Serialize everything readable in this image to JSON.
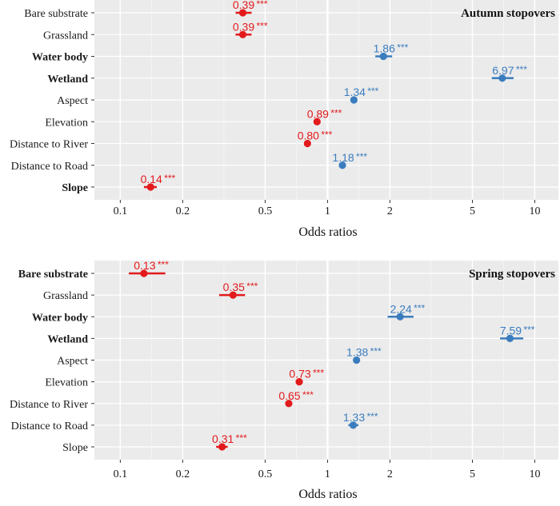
{
  "chart_data": [
    {
      "type": "forest",
      "title": "Autumn stopovers",
      "xlabel": "Odds ratios",
      "xscale": "log",
      "xlim": [
        0.075,
        13
      ],
      "xticks": [
        0.1,
        0.2,
        0.5,
        1,
        2,
        5,
        10
      ],
      "xtick_labels": [
        "0.1",
        "0.2",
        "0.5",
        "1",
        "2",
        "5",
        "10"
      ],
      "grid": true,
      "colors": {
        "negative": "#e31a1c",
        "positive": "#3a7dbf"
      },
      "points": [
        {
          "label": "Bare substrate",
          "bold": false,
          "or": 0.39,
          "lo": 0.36,
          "hi": 0.43,
          "sig": "***",
          "direction": "negative"
        },
        {
          "label": "Grassland",
          "bold": false,
          "or": 0.39,
          "lo": 0.36,
          "hi": 0.43,
          "sig": "***",
          "direction": "negative"
        },
        {
          "label": "Water body",
          "bold": true,
          "or": 1.86,
          "lo": 1.7,
          "hi": 2.05,
          "sig": "***",
          "direction": "positive"
        },
        {
          "label": "Wetland",
          "bold": true,
          "or": 6.97,
          "lo": 6.2,
          "hi": 7.9,
          "sig": "***",
          "direction": "positive"
        },
        {
          "label": "Aspect",
          "bold": false,
          "or": 1.34,
          "lo": 1.31,
          "hi": 1.37,
          "sig": "***",
          "direction": "positive"
        },
        {
          "label": "Elevation",
          "bold": false,
          "or": 0.89,
          "lo": 0.87,
          "hi": 0.91,
          "sig": "***",
          "direction": "negative"
        },
        {
          "label": "Distance to River",
          "bold": false,
          "or": 0.8,
          "lo": 0.78,
          "hi": 0.82,
          "sig": "***",
          "direction": "negative"
        },
        {
          "label": "Distance to Road",
          "bold": false,
          "or": 1.18,
          "lo": 1.15,
          "hi": 1.21,
          "sig": "***",
          "direction": "positive"
        },
        {
          "label": "Slope",
          "bold": true,
          "or": 0.14,
          "lo": 0.13,
          "hi": 0.15,
          "sig": "***",
          "direction": "negative"
        }
      ]
    },
    {
      "type": "forest",
      "title": "Spring stopovers",
      "xlabel": "Odds ratios",
      "xscale": "log",
      "xlim": [
        0.075,
        13
      ],
      "xticks": [
        0.1,
        0.2,
        0.5,
        1,
        2,
        5,
        10
      ],
      "xtick_labels": [
        "0.1",
        "0.2",
        "0.5",
        "1",
        "2",
        "5",
        "10"
      ],
      "grid": true,
      "colors": {
        "negative": "#e31a1c",
        "positive": "#3a7dbf"
      },
      "points": [
        {
          "label": "Bare substrate",
          "bold": true,
          "or": 0.13,
          "lo": 0.11,
          "hi": 0.165,
          "sig": "***",
          "direction": "negative"
        },
        {
          "label": "Grassland",
          "bold": false,
          "or": 0.35,
          "lo": 0.3,
          "hi": 0.4,
          "sig": "***",
          "direction": "negative"
        },
        {
          "label": "Water body",
          "bold": true,
          "or": 2.24,
          "lo": 1.95,
          "hi": 2.6,
          "sig": "***",
          "direction": "positive"
        },
        {
          "label": "Wetland",
          "bold": true,
          "or": 7.59,
          "lo": 6.8,
          "hi": 8.8,
          "sig": "***",
          "direction": "positive"
        },
        {
          "label": "Aspect",
          "bold": false,
          "or": 1.38,
          "lo": 1.35,
          "hi": 1.41,
          "sig": "***",
          "direction": "positive"
        },
        {
          "label": "Elevation",
          "bold": false,
          "or": 0.73,
          "lo": 0.715,
          "hi": 0.745,
          "sig": "***",
          "direction": "negative"
        },
        {
          "label": "Distance to River",
          "bold": false,
          "or": 0.65,
          "lo": 0.635,
          "hi": 0.665,
          "sig": "***",
          "direction": "negative"
        },
        {
          "label": "Distance to Road",
          "bold": false,
          "or": 1.33,
          "lo": 1.26,
          "hi": 1.41,
          "sig": "***",
          "direction": "positive"
        },
        {
          "label": "Slope",
          "bold": false,
          "or": 0.31,
          "lo": 0.29,
          "hi": 0.33,
          "sig": "***",
          "direction": "negative"
        }
      ]
    }
  ]
}
